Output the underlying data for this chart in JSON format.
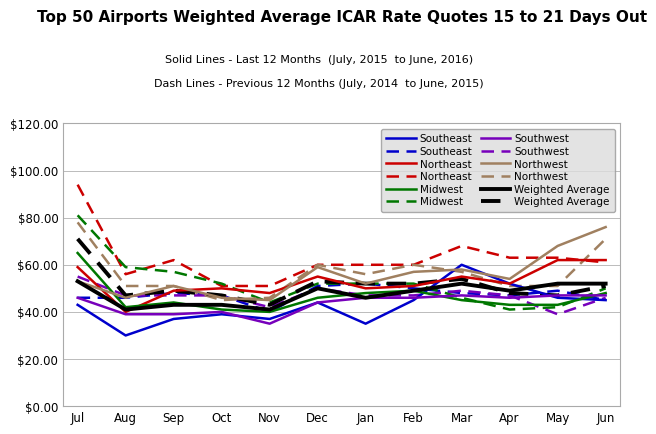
{
  "title": "Top 50 Airports Weighted Average ICAR Rate Quotes 15 to 21 Days Out",
  "subtitle1": "Solid Lines - Last 12 Months  (July, 2015  to June, 2016)",
  "subtitle2": "Dash Lines - Previous 12 Months (July, 2014  to June, 2015)",
  "months": [
    "Jul",
    "Aug",
    "Sep",
    "Oct",
    "Nov",
    "Dec",
    "Jan",
    "Feb",
    "Mar",
    "Apr",
    "May",
    "Jun"
  ],
  "solid": {
    "Southeast": [
      43,
      30,
      37,
      39,
      37,
      44,
      35,
      45,
      60,
      52,
      46,
      45
    ],
    "Northeast": [
      59,
      40,
      49,
      50,
      48,
      55,
      50,
      51,
      55,
      52,
      62,
      62
    ],
    "Midwest": [
      65,
      42,
      44,
      41,
      40,
      46,
      48,
      49,
      45,
      43,
      43,
      48
    ],
    "Southwest": [
      46,
      39,
      39,
      40,
      35,
      44,
      46,
      46,
      47,
      46,
      47,
      47
    ],
    "Northwest": [
      53,
      46,
      51,
      46,
      45,
      59,
      52,
      57,
      58,
      54,
      68,
      76
    ],
    "WeightedAverage": [
      53,
      41,
      43,
      43,
      41,
      50,
      46,
      49,
      52,
      49,
      52,
      52
    ]
  },
  "dash": {
    "Southeast": [
      46,
      46,
      48,
      47,
      40,
      51,
      52,
      50,
      48,
      47,
      49,
      45
    ],
    "Northeast": [
      94,
      56,
      62,
      51,
      51,
      60,
      60,
      60,
      68,
      63,
      63,
      61
    ],
    "Midwest": [
      81,
      59,
      57,
      52,
      44,
      52,
      52,
      52,
      46,
      41,
      42,
      50
    ],
    "Southwest": [
      55,
      47,
      47,
      47,
      42,
      50,
      47,
      47,
      49,
      47,
      39,
      46
    ],
    "Northwest": [
      78,
      51,
      51,
      45,
      46,
      60,
      56,
      60,
      57,
      51,
      51,
      71
    ],
    "WeightedAverage": [
      71,
      47,
      49,
      47,
      43,
      53,
      52,
      52,
      54,
      48,
      47,
      51
    ]
  },
  "colors": {
    "Southeast": "#0000CC",
    "Northeast": "#CC0000",
    "Midwest": "#007700",
    "Southwest": "#7700BB",
    "Northwest": "#A08060",
    "WeightedAverage": "#000000"
  },
  "region_order": [
    "Southeast",
    "Northeast",
    "Midwest",
    "Southwest",
    "Northwest",
    "WeightedAverage"
  ],
  "label_map": {
    "Southeast": "Southeast",
    "Northeast": "Northeast",
    "Midwest": "Midwest",
    "Southwest": "Southwest",
    "Northwest": "Northwest",
    "WeightedAverage": "Weighted Average"
  },
  "ylim": [
    0,
    120
  ],
  "yticks": [
    0,
    20,
    40,
    60,
    80,
    100,
    120
  ],
  "ytick_labels": [
    "$0.00",
    "$20.00",
    "$40.00",
    "$60.00",
    "$80.00",
    "$100.00",
    "$120.00"
  ],
  "background_color": "#FFFFFF",
  "plot_bg": "#FFFFFF",
  "title_fontsize": 11,
  "subtitle_fontsize": 8,
  "legend_fontsize": 7.5,
  "lw_region": 1.8,
  "lw_wavg": 2.8
}
